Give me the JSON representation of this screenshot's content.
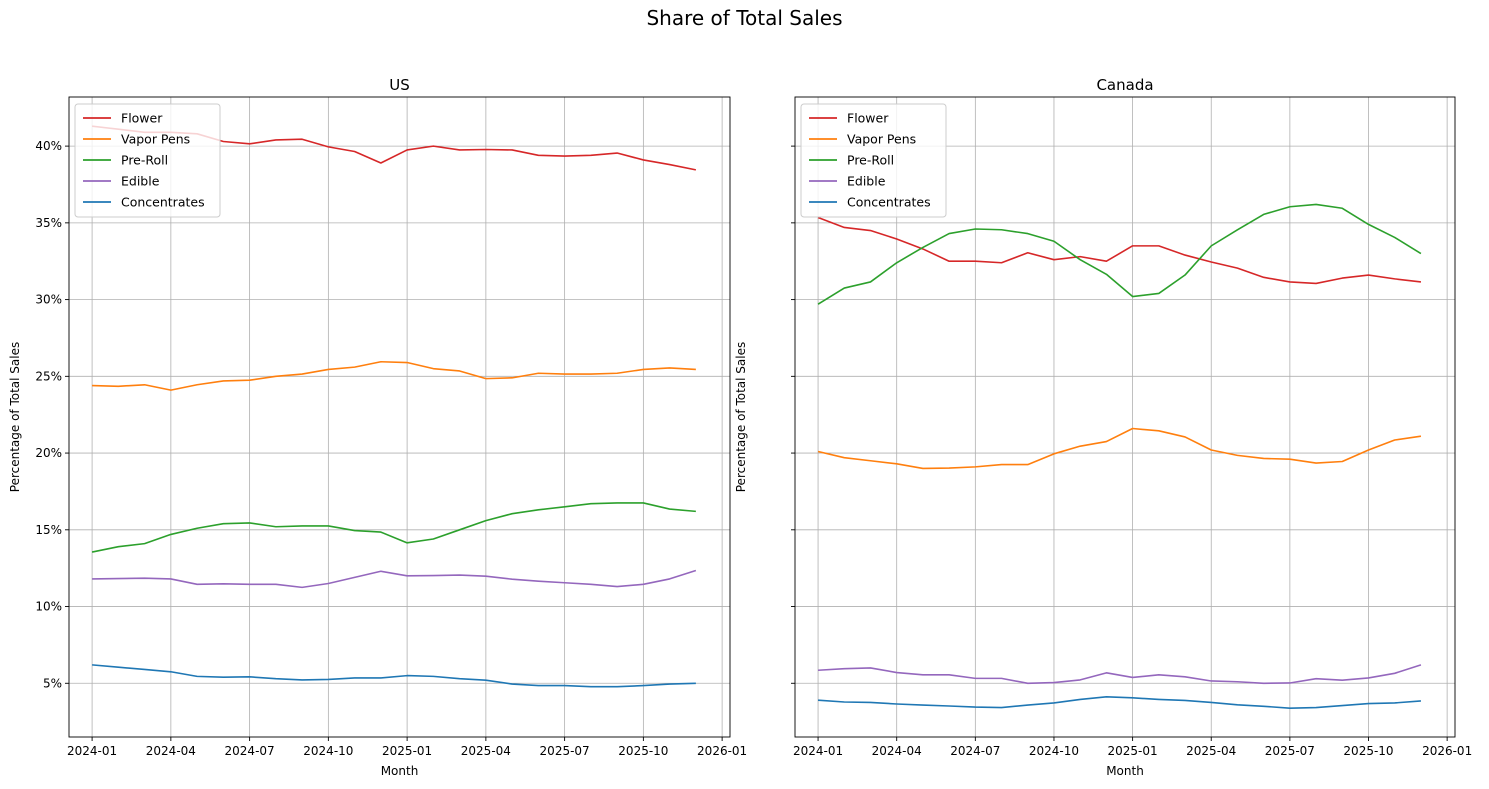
{
  "title": "Share of Total Sales",
  "chart_data": [
    {
      "type": "line",
      "title": "US",
      "xlabel": "Month",
      "ylabel": "Percentage of Total Sales",
      "x": [
        "2024-01",
        "2024-02",
        "2024-03",
        "2024-04",
        "2024-05",
        "2024-06",
        "2024-07",
        "2024-08",
        "2024-09",
        "2024-10",
        "2024-11",
        "2024-12",
        "2025-01",
        "2025-02",
        "2025-03",
        "2025-04",
        "2025-05",
        "2025-06",
        "2025-07",
        "2025-08",
        "2025-09",
        "2025-10",
        "2025-11",
        "2025-12"
      ],
      "xticks": [
        "2024-01",
        "2024-04",
        "2024-07",
        "2024-10",
        "2025-01",
        "2025-04",
        "2025-07",
        "2025-10",
        "2026-01"
      ],
      "yticks": [
        5,
        10,
        15,
        20,
        25,
        30,
        35,
        40
      ],
      "ytick_labels": [
        "5%",
        "10%",
        "15%",
        "20%",
        "25%",
        "30%",
        "35%",
        "40%"
      ],
      "ylim": [
        1.5,
        43.2
      ],
      "grid": true,
      "legend": "top-left",
      "series": [
        {
          "name": "Flower",
          "color": "#d62728",
          "values": [
            41.3,
            41.1,
            40.9,
            40.9,
            40.8,
            40.3,
            40.15,
            40.4,
            40.45,
            39.95,
            39.65,
            38.9,
            39.75,
            40.0,
            39.75,
            39.78,
            39.75,
            39.4,
            39.35,
            39.4,
            39.55,
            39.1,
            38.8,
            38.45
          ]
        },
        {
          "name": "Vapor Pens",
          "color": "#ff7f0e",
          "values": [
            24.4,
            24.35,
            24.45,
            24.1,
            24.45,
            24.7,
            24.75,
            25.0,
            25.15,
            25.45,
            25.6,
            25.95,
            25.9,
            25.5,
            25.35,
            24.85,
            24.9,
            25.2,
            25.15,
            25.15,
            25.2,
            25.45,
            25.55,
            25.45
          ]
        },
        {
          "name": "Pre-Roll",
          "color": "#2ca02c",
          "values": [
            13.55,
            13.9,
            14.1,
            14.7,
            15.1,
            15.4,
            15.45,
            15.2,
            15.25,
            15.25,
            14.95,
            14.85,
            14.15,
            14.4,
            15.0,
            15.6,
            16.05,
            16.3,
            16.5,
            16.7,
            16.75,
            16.75,
            16.35,
            16.2
          ]
        },
        {
          "name": "Edible",
          "color": "#9467bd",
          "values": [
            11.8,
            11.82,
            11.85,
            11.8,
            11.45,
            11.48,
            11.45,
            11.45,
            11.25,
            11.5,
            11.9,
            12.3,
            12.0,
            12.02,
            12.05,
            11.98,
            11.78,
            11.65,
            11.55,
            11.45,
            11.3,
            11.45,
            11.8,
            12.35
          ]
        },
        {
          "name": "Concentrates",
          "color": "#1f77b4",
          "values": [
            6.2,
            6.05,
            5.9,
            5.75,
            5.45,
            5.4,
            5.42,
            5.3,
            5.22,
            5.25,
            5.35,
            5.35,
            5.5,
            5.45,
            5.3,
            5.2,
            4.95,
            4.85,
            4.85,
            4.78,
            4.78,
            4.85,
            4.95,
            5.0
          ]
        }
      ]
    },
    {
      "type": "line",
      "title": "Canada",
      "xlabel": "Month",
      "ylabel": "Percentage of Total Sales",
      "x": [
        "2024-01",
        "2024-02",
        "2024-03",
        "2024-04",
        "2024-05",
        "2024-06",
        "2024-07",
        "2024-08",
        "2024-09",
        "2024-10",
        "2024-11",
        "2024-12",
        "2025-01",
        "2025-02",
        "2025-03",
        "2025-04",
        "2025-05",
        "2025-06",
        "2025-07",
        "2025-08",
        "2025-09",
        "2025-10",
        "2025-11",
        "2025-12"
      ],
      "xticks": [
        "2024-01",
        "2024-04",
        "2024-07",
        "2024-10",
        "2025-01",
        "2025-04",
        "2025-07",
        "2025-10",
        "2026-01"
      ],
      "yticks": [
        5,
        10,
        15,
        20,
        25,
        30,
        35,
        40
      ],
      "ytick_labels": [],
      "ylim": [
        1.5,
        43.2
      ],
      "grid": true,
      "legend": "top-left",
      "series": [
        {
          "name": "Flower",
          "color": "#d62728",
          "values": [
            35.35,
            34.7,
            34.5,
            33.95,
            33.3,
            32.5,
            32.5,
            32.4,
            33.05,
            32.6,
            32.8,
            32.5,
            33.5,
            33.5,
            32.9,
            32.45,
            32.05,
            31.45,
            31.15,
            31.05,
            31.4,
            31.6,
            31.35,
            31.15
          ]
        },
        {
          "name": "Vapor Pens",
          "color": "#ff7f0e",
          "values": [
            20.1,
            19.7,
            19.5,
            19.3,
            19.0,
            19.02,
            19.1,
            19.25,
            19.25,
            19.95,
            20.45,
            20.75,
            21.6,
            21.45,
            21.05,
            20.2,
            19.85,
            19.65,
            19.6,
            19.35,
            19.45,
            20.2,
            20.85,
            21.1
          ]
        },
        {
          "name": "Pre-Roll",
          "color": "#2ca02c",
          "values": [
            29.7,
            30.75,
            31.15,
            32.4,
            33.4,
            34.3,
            34.6,
            34.55,
            34.3,
            33.8,
            32.6,
            31.65,
            30.2,
            30.4,
            31.6,
            33.5,
            34.55,
            35.55,
            36.05,
            36.2,
            35.95,
            34.9,
            34.05,
            33.0
          ]
        },
        {
          "name": "Edible",
          "color": "#9467bd",
          "values": [
            5.85,
            5.95,
            6.0,
            5.7,
            5.55,
            5.55,
            5.32,
            5.32,
            5.0,
            5.05,
            5.22,
            5.68,
            5.38,
            5.55,
            5.42,
            5.15,
            5.1,
            5.0,
            5.02,
            5.3,
            5.2,
            5.35,
            5.65,
            6.2
          ]
        },
        {
          "name": "Concentrates",
          "color": "#1f77b4",
          "values": [
            3.9,
            3.78,
            3.75,
            3.65,
            3.58,
            3.52,
            3.45,
            3.42,
            3.58,
            3.72,
            3.95,
            4.12,
            4.05,
            3.95,
            3.88,
            3.75,
            3.6,
            3.5,
            3.38,
            3.42,
            3.55,
            3.68,
            3.72,
            3.85
          ]
        }
      ]
    }
  ]
}
